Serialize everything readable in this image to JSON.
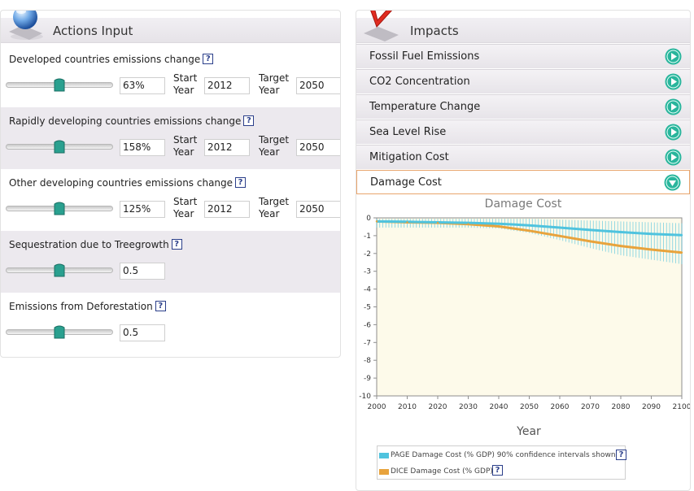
{
  "actions": {
    "title": "Actions Input",
    "start_label_1": "Start",
    "start_label_2": "Year",
    "target_label_1": "Target",
    "target_label_2": "Year",
    "help_glyph": "?",
    "items": [
      {
        "label": "Developed countries emissions change",
        "value": "63%",
        "start": "2012",
        "target": "2050",
        "slider_level": 0.5
      },
      {
        "label": "Rapidly developing countries emissions change",
        "value": "158%",
        "start": "2012",
        "target": "2050",
        "slider_level": 0.5
      },
      {
        "label": "Other developing countries emissions change",
        "value": "125%",
        "start": "2012",
        "target": "2050",
        "slider_level": 0.5
      },
      {
        "label": "Sequestration due to Treegrowth",
        "value": "0.5",
        "slider_level": 0.5
      },
      {
        "label": "Emissions from Deforestation",
        "value": "0.5",
        "slider_level": 0.5
      }
    ]
  },
  "impacts": {
    "title": "Impacts",
    "items": [
      {
        "label": "Fossil Fuel Emissions",
        "expanded": false
      },
      {
        "label": "CO2 Concentration",
        "expanded": false
      },
      {
        "label": "Temperature Change",
        "expanded": false
      },
      {
        "label": "Sea Level Rise",
        "expanded": false
      },
      {
        "label": "Mitigation Cost",
        "expanded": false
      },
      {
        "label": "Damage Cost",
        "expanded": true
      }
    ]
  },
  "legend": {
    "page": "PAGE Damage Cost (% GDP) 90% confidence intervals shown",
    "dice": "DICE Damage Cost (% GDP)"
  },
  "colors": {
    "page_series": "#4fc3de",
    "dice_series": "#e8a33c",
    "accent_green": "#29b59c",
    "help_blue": "#2b3f8a",
    "plot_bg": "#fdfaea"
  },
  "chart_data": {
    "type": "line",
    "title": "Damage Cost",
    "xlabel": "Year",
    "ylabel": "",
    "xlim": [
      2000,
      2100
    ],
    "ylim": [
      -10,
      0
    ],
    "x_ticks": [
      2000,
      2010,
      2020,
      2030,
      2040,
      2050,
      2060,
      2070,
      2080,
      2090,
      2100
    ],
    "y_ticks": [
      0,
      -1,
      -2,
      -3,
      -4,
      -5,
      -6,
      -7,
      -8,
      -9,
      -10
    ],
    "grid": false,
    "legend_position": "bottom",
    "series": [
      {
        "name": "PAGE Damage Cost (% GDP) 90% confidence intervals shown",
        "x": [
          2000,
          2010,
          2020,
          2030,
          2040,
          2050,
          2060,
          2070,
          2080,
          2090,
          2100
        ],
        "y": [
          -0.2,
          -0.22,
          -0.25,
          -0.28,
          -0.33,
          -0.42,
          -0.55,
          -0.68,
          -0.8,
          -0.9,
          -0.97
        ],
        "lower": [
          -0.55,
          -0.55,
          -0.55,
          -0.55,
          -0.6,
          -0.85,
          -1.25,
          -1.7,
          -2.1,
          -2.35,
          -2.6
        ],
        "upper": [
          -0.05,
          -0.05,
          -0.05,
          -0.05,
          -0.05,
          -0.05,
          -0.1,
          -0.15,
          -0.2,
          -0.25,
          -0.3
        ]
      },
      {
        "name": "DICE Damage Cost (% GDP)",
        "x": [
          2000,
          2010,
          2020,
          2030,
          2040,
          2050,
          2060,
          2070,
          2080,
          2090,
          2100
        ],
        "y": [
          -0.2,
          -0.25,
          -0.28,
          -0.35,
          -0.48,
          -0.72,
          -1.02,
          -1.32,
          -1.58,
          -1.78,
          -1.95
        ]
      }
    ]
  }
}
